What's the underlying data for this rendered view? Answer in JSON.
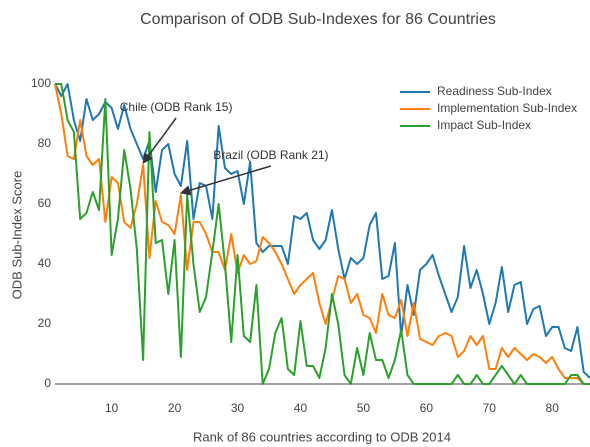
{
  "chart_data": {
    "type": "line",
    "title": "Comparison of ODB Sub-Indexes for 86 Countries",
    "xlabel": "Rank of 86 countries according to ODB 2014",
    "ylabel": "ODB Sub-Index Score",
    "x": [
      1,
      2,
      3,
      4,
      5,
      6,
      7,
      8,
      9,
      10,
      11,
      12,
      13,
      14,
      15,
      16,
      17,
      18,
      19,
      20,
      21,
      22,
      23,
      24,
      25,
      26,
      27,
      28,
      29,
      30,
      31,
      32,
      33,
      34,
      35,
      36,
      37,
      38,
      39,
      40,
      41,
      42,
      43,
      44,
      45,
      46,
      47,
      48,
      49,
      50,
      51,
      52,
      53,
      54,
      55,
      56,
      57,
      58,
      59,
      60,
      61,
      62,
      63,
      64,
      65,
      66,
      67,
      68,
      69,
      70,
      71,
      72,
      73,
      74,
      75,
      76,
      77,
      78,
      79,
      80,
      81,
      82,
      83,
      84,
      85,
      86
    ],
    "series": [
      {
        "name": "Readiness Sub-Index",
        "color": "#1f77b4",
        "values": [
          100,
          96,
          100,
          88,
          81,
          95,
          88,
          90,
          94,
          92,
          85,
          93,
          85,
          80,
          75,
          81,
          64,
          78,
          80,
          70,
          66,
          81,
          55,
          67,
          66,
          55,
          86,
          72,
          70,
          71,
          60,
          74,
          47,
          44,
          46,
          46,
          46,
          40,
          56,
          55,
          57,
          48,
          45,
          48,
          58,
          45,
          35,
          42,
          40,
          42,
          53,
          57,
          35,
          36,
          47,
          16,
          33,
          23,
          38,
          40,
          43,
          36,
          30,
          24,
          29,
          46,
          32,
          38,
          30,
          20,
          27,
          39,
          24,
          33,
          34,
          20,
          25,
          26,
          16,
          19,
          19,
          12,
          11,
          19,
          4,
          2
        ]
      },
      {
        "name": "Implementation Sub-Index",
        "color": "#ff7f0e",
        "values": [
          100,
          90,
          76,
          75,
          88,
          76,
          73,
          75,
          54,
          69,
          67,
          54,
          52,
          60,
          73,
          42,
          61,
          54,
          53,
          50,
          63,
          38,
          54,
          54,
          50,
          44,
          44,
          38,
          50,
          37,
          43,
          40,
          41,
          49,
          47,
          44,
          40,
          35,
          30,
          33,
          35,
          37,
          27,
          20,
          28,
          36,
          35,
          27,
          30,
          23,
          22,
          17,
          30,
          23,
          22,
          28,
          16,
          27,
          15,
          14,
          13,
          16,
          17,
          16,
          9,
          11,
          16,
          13,
          16,
          5,
          5,
          12,
          9,
          12,
          10,
          8,
          10,
          9,
          7,
          9,
          5,
          2,
          2,
          2,
          0,
          0
        ]
      },
      {
        "name": "Impact Sub-Index",
        "color": "#2ca02c",
        "values": [
          100,
          100,
          88,
          84,
          55,
          57,
          64,
          58,
          95,
          43,
          55,
          78,
          65,
          45,
          8,
          84,
          47,
          48,
          30,
          48,
          9,
          63,
          40,
          24,
          29,
          44,
          60,
          40,
          14,
          43,
          16,
          14,
          33,
          0,
          5,
          17,
          22,
          5,
          3,
          21,
          6,
          6,
          2,
          12,
          30,
          20,
          3,
          0,
          12,
          3,
          17,
          8,
          8,
          2,
          8,
          18,
          3,
          0,
          0,
          0,
          0,
          0,
          0,
          0,
          3,
          0,
          0,
          3,
          0,
          0,
          3,
          6,
          3,
          0,
          3,
          0,
          0,
          0,
          0,
          0,
          0,
          0,
          3,
          3,
          0,
          0
        ]
      }
    ],
    "xlim": [
      1,
      86
    ],
    "ylim": [
      0,
      100
    ],
    "xticks": [
      10,
      20,
      30,
      40,
      50,
      60,
      70,
      80
    ],
    "yticks": [
      0,
      20,
      40,
      60,
      80,
      100
    ],
    "legend": "top-right",
    "annotations": [
      {
        "text": "Chile (ODB Rank 15)",
        "x": 15,
        "y": 73
      },
      {
        "text": "Brazil (ODB Rank 21)",
        "x": 21,
        "y": 63
      }
    ]
  }
}
